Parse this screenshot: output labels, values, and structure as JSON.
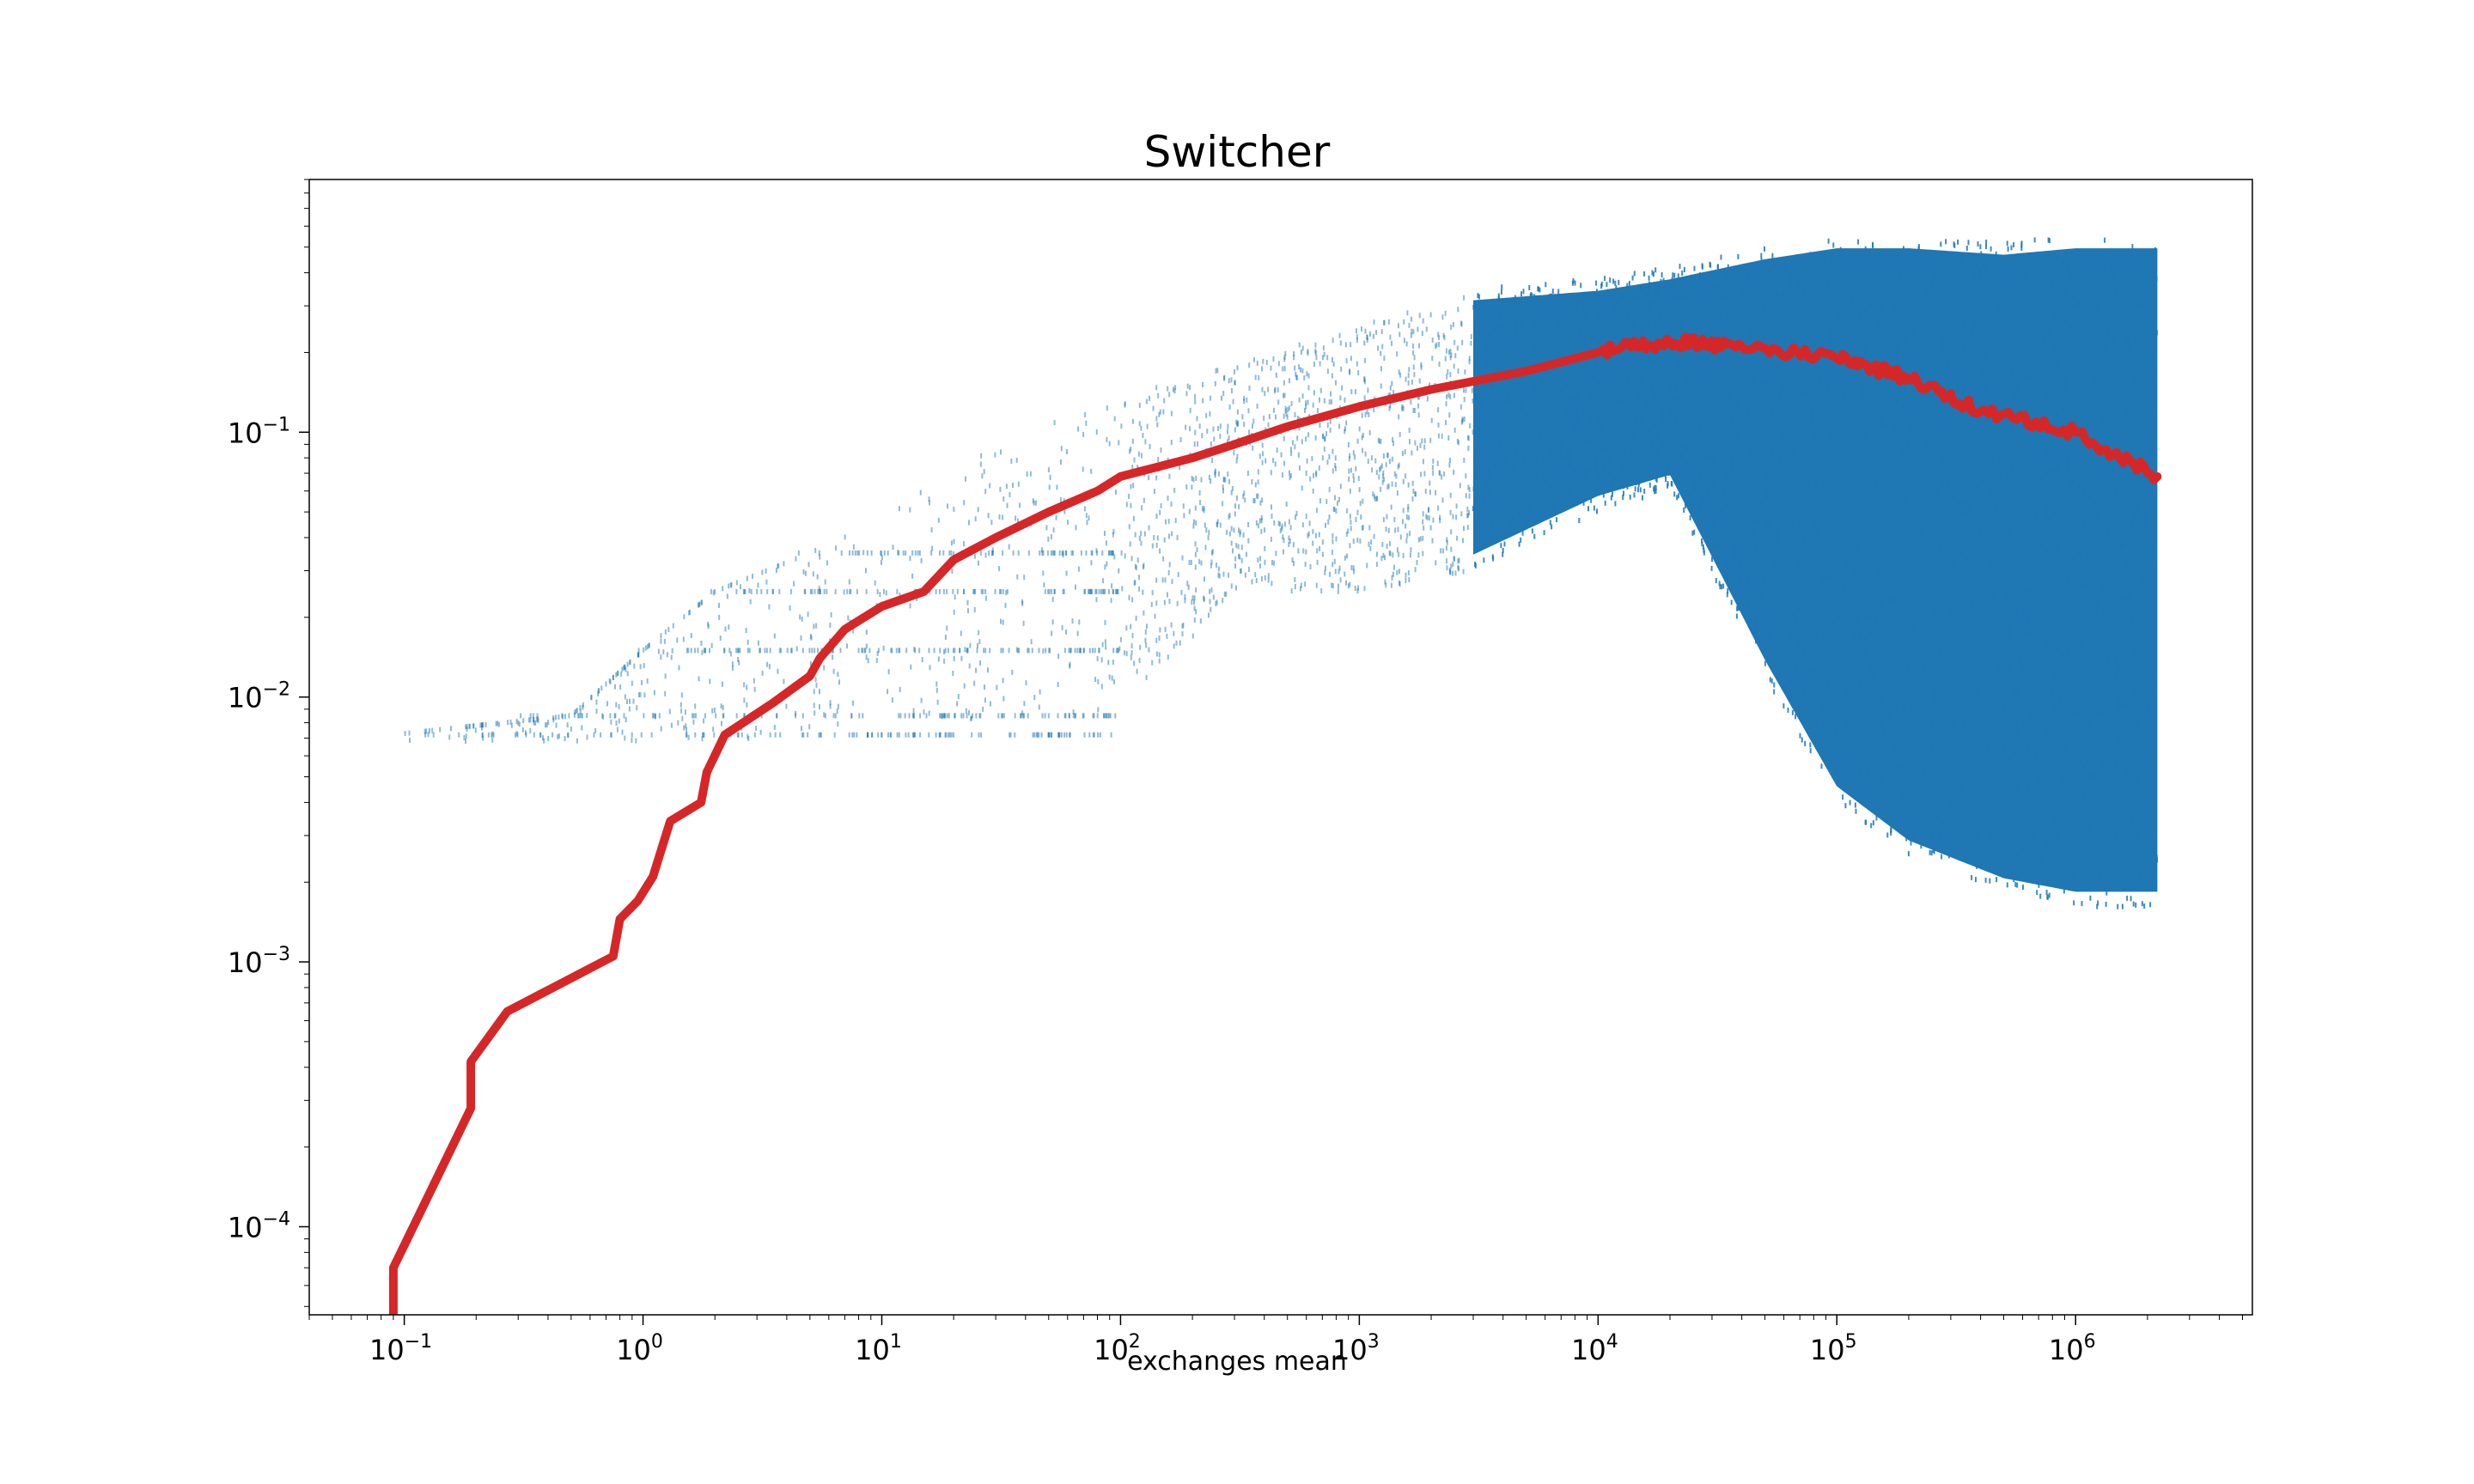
{
  "chart_data": {
    "type": "scatter",
    "title": "Switcher",
    "xlabel": "exchanges mean",
    "ylabel": "",
    "x_scale": "log",
    "y_scale": "log",
    "xlim": [
      0.04,
      5500000
    ],
    "ylim": [
      4.65e-05,
      0.9
    ],
    "grid": false,
    "x_ticks": [
      {
        "value": 0.1,
        "base": "10",
        "exp": "−1"
      },
      {
        "value": 1,
        "base": "10",
        "exp": "0"
      },
      {
        "value": 10,
        "base": "10",
        "exp": "1"
      },
      {
        "value": 100,
        "base": "10",
        "exp": "2"
      },
      {
        "value": 1000,
        "base": "10",
        "exp": "3"
      },
      {
        "value": 10000,
        "base": "10",
        "exp": "4"
      },
      {
        "value": 100000,
        "base": "10",
        "exp": "5"
      },
      {
        "value": 1000000,
        "base": "10",
        "exp": "6"
      }
    ],
    "y_ticks": [
      {
        "value": 0.1,
        "base": "10",
        "exp": "−1"
      },
      {
        "value": 0.01,
        "base": "10",
        "exp": "−2"
      },
      {
        "value": 0.001,
        "base": "10",
        "exp": "−3"
      },
      {
        "value": 0.0001,
        "base": "10",
        "exp": "−4"
      }
    ],
    "series": [
      {
        "kind": "scatter-band",
        "color": "#1f77b4",
        "envelope": {
          "x": [
            0.09,
            0.2,
            0.5,
            1,
            2,
            5,
            10,
            30,
            100,
            300,
            1000,
            3000,
            10000,
            20000,
            50000,
            100000,
            200000,
            500000,
            1000000,
            2200000
          ],
          "y_high": [
            0.0072,
            0.0078,
            0.0085,
            0.015,
            0.025,
            0.035,
            0.05,
            0.09,
            0.14,
            0.18,
            0.25,
            0.35,
            0.38,
            0.42,
            0.5,
            0.55,
            0.55,
            0.52,
            0.55,
            0.55
          ],
          "y_low": [
            0.0068,
            0.0068,
            0.0068,
            0.0068,
            0.0068,
            0.0072,
            0.0075,
            0.0085,
            0.0085,
            0.025,
            0.025,
            0.03,
            0.05,
            0.06,
            0.012,
            0.004,
            0.0025,
            0.0018,
            0.0016,
            0.0016
          ]
        },
        "discrete_levels": [
          0.0072,
          0.0085,
          0.015,
          0.025,
          0.035
        ]
      },
      {
        "kind": "line",
        "color": "#d62728",
        "x": [
          0.09,
          0.09,
          0.19,
          0.19,
          0.27,
          0.75,
          0.8,
          0.95,
          1.1,
          1.3,
          1.75,
          1.85,
          2.2,
          3.5,
          5,
          5.5,
          7,
          10,
          15,
          20,
          30,
          50,
          80,
          100,
          200,
          300,
          500,
          1000,
          2000,
          5000,
          10000,
          20000,
          40000,
          100000,
          200000,
          400000,
          1000000,
          2200000
        ],
        "y": [
          4.65e-05,
          7e-05,
          0.00028,
          0.00042,
          0.00065,
          0.00105,
          0.00145,
          0.0017,
          0.0021,
          0.0034,
          0.004,
          0.0052,
          0.0072,
          0.0095,
          0.012,
          0.014,
          0.018,
          0.022,
          0.025,
          0.033,
          0.04,
          0.05,
          0.06,
          0.068,
          0.08,
          0.09,
          0.105,
          0.125,
          0.145,
          0.17,
          0.2,
          0.22,
          0.21,
          0.19,
          0.16,
          0.12,
          0.1,
          0.068
        ]
      }
    ]
  }
}
